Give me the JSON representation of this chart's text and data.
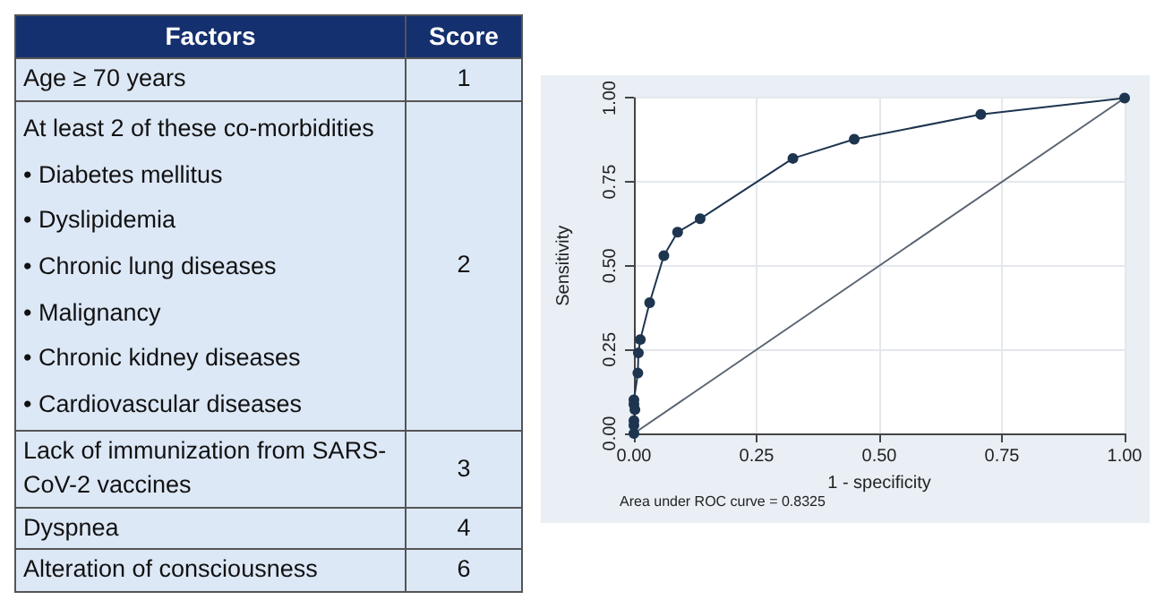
{
  "chart_data": [
    {
      "type": "other",
      "xlabel": "Factors",
      "ylabel": "Score",
      "categories": [
        "Age ≥ 70 years",
        "At least 2 of these co-morbidities\n•  Diabetes mellitus\n•  Dyslipidemia\n•  Chronic lung diseases\n•  Malignancy\n•  Chronic kidney diseases\n•  Cardiovascular diseases",
        "Lack of immunization from SARS-CoV-2 vaccines",
        "Dyspnea",
        "Alteration of consciousness"
      ],
      "values": [
        1,
        2,
        3,
        4,
        6
      ],
      "data_labels": true
    },
    {
      "type": "line",
      "xlabel": "1 - specificity",
      "ylabel": "Sensitivity",
      "grid": true,
      "xlim": [
        0,
        1
      ],
      "ylim": [
        0,
        1
      ],
      "xticks": [
        {
          "value": 0,
          "label": "0.00"
        },
        {
          "value": 0.25,
          "label": "0.25"
        },
        {
          "value": 0.5,
          "label": "0.50"
        },
        {
          "value": 0.75,
          "label": "0.75"
        },
        {
          "value": 1,
          "label": "1.00"
        }
      ],
      "yticks": [
        {
          "value": 0,
          "label": "0.00"
        },
        {
          "value": 0.25,
          "label": "0.25"
        },
        {
          "value": 0.5,
          "label": "0.50"
        },
        {
          "value": 0.75,
          "label": "0.75"
        },
        {
          "value": 1,
          "label": "1.00"
        }
      ],
      "series": [
        {
          "color": "#1e3550",
          "marker": "circle",
          "x": [
            0,
            0,
            0,
            0.002,
            0,
            0,
            0.008,
            0.009,
            0.013,
            0.032,
            0.061,
            0.089,
            0.135,
            0.324,
            0.449,
            0.707,
            1
          ],
          "values": [
            0,
            0.024,
            0.038,
            0.071,
            0.087,
            0.1,
            0.18,
            0.24,
            0.28,
            0.39,
            0.53,
            0.6,
            0.64,
            0.82,
            0.877,
            0.951,
            1
          ]
        },
        {
          "color": "#5a6470",
          "marker": "none",
          "x": [
            0,
            1
          ],
          "values": [
            0,
            1
          ]
        }
      ],
      "annotations": [
        "Area under ROC curve = 0.8325"
      ]
    }
  ]
}
